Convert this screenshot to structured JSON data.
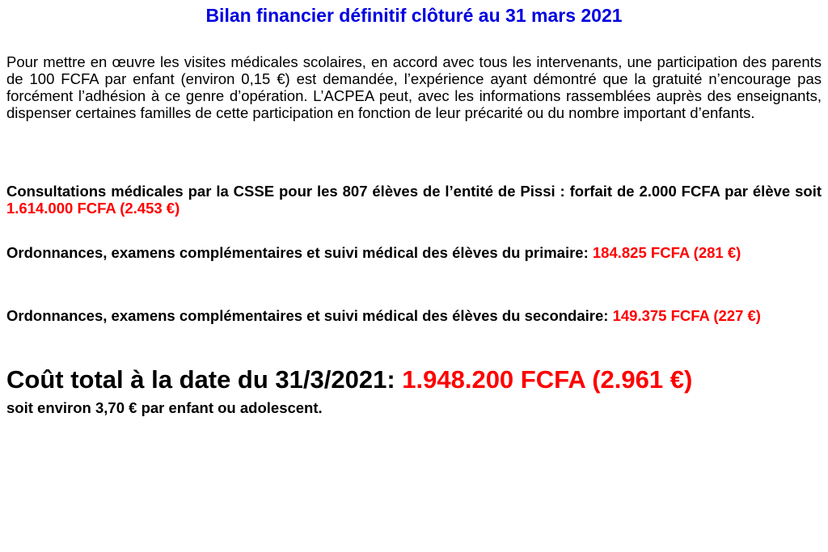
{
  "title": "Bilan financier définitif clôturé au 31 mars 2021",
  "intro": "Pour mettre en œuvre les visites médicales scolaires, en accord avec tous les intervenants, une participation des parents de 100 FCFA par enfant (environ 0,15 €) est demandée, l’expérience ayant démontré que la gratuité n’encourage pas forcément l’adhésion à ce genre d’opération. L’ACPEA peut, avec les informations rassemblées auprès des enseignants, dispenser certaines familles de cette participation en fonction de leur précarité ou du nombre important d’enfants.",
  "items": [
    {
      "text": "Consultations médicales par la CSSE pour les 807 élèves de l’entité de Pissi : forfait de 2.000 FCFA par élève soit",
      "amount": "1.614.000 FCFA (2.453 €)"
    },
    {
      "text": "Ordonnances, examens complémentaires et suivi médical des élèves du primaire:",
      "amount": "184.825 FCFA (281 €)"
    },
    {
      "text": "Ordonnances, examens complémentaires et suivi médical des élèves du secondaire:",
      "amount": "149.375 FCFA (227 €)"
    }
  ],
  "total": {
    "label": "Coût total à la date du 31/3/2021:",
    "amount": "1.948.200 FCFA (2.961 €)",
    "note": "soit environ 3,70 € par enfant ou adolescent."
  }
}
